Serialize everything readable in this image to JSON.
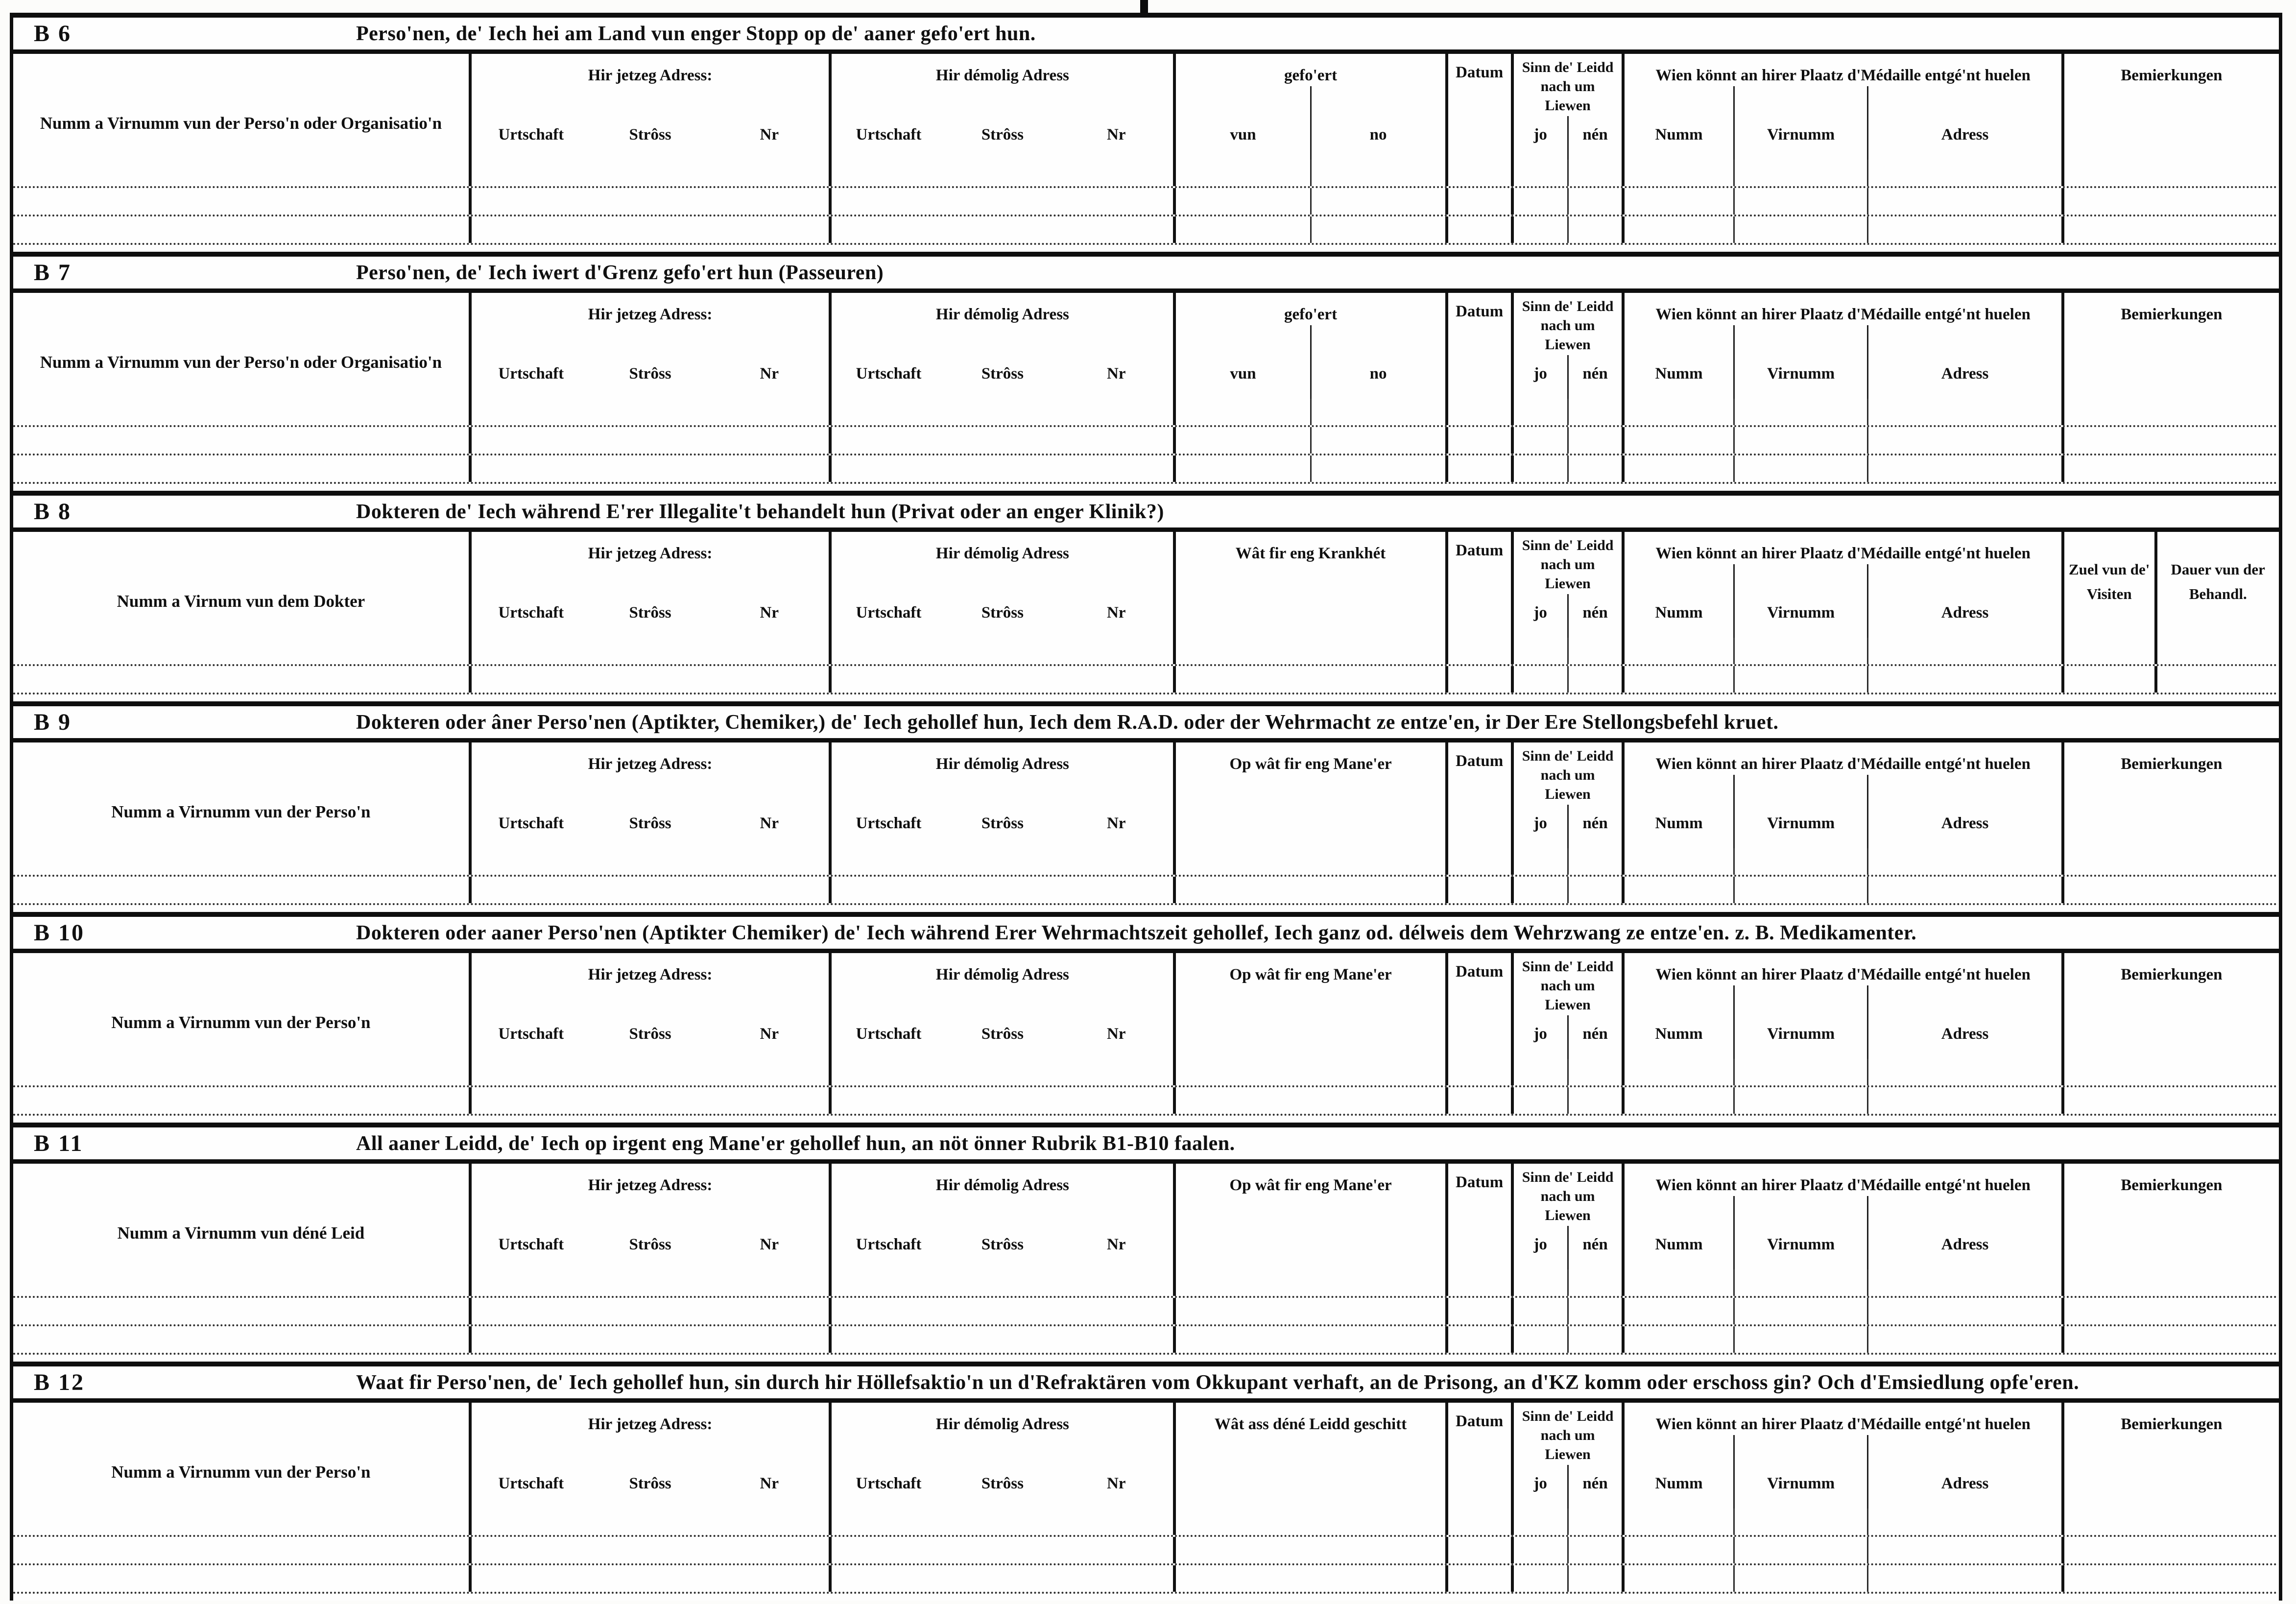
{
  "document": {
    "kind": "scanned historical questionnaire form",
    "ink_color": "#0e0e0e",
    "paper_color": "#fcfcfa"
  },
  "shared_headers": {
    "current_address": "Hir jetzeg Adress:",
    "former_address": "Hir démolig Adress",
    "address_subcols": [
      "Urtschaft",
      "Strôss",
      "Nr"
    ],
    "date": "Datum",
    "alive": "Sinn de' Leidd nach um Liewen",
    "alive_subcols": [
      "jo",
      "nén"
    ],
    "medal": "Wien könnt an hirer Plaatz d'Médaille entgé'nt huelen",
    "medal_subcols": [
      "Numm",
      "Virnumm",
      "Adress"
    ],
    "remarks": "Bemierkungen"
  },
  "sections": [
    {
      "id": "B 6",
      "title": "Perso'nen, de' Iech hei am Land vun enger Stopp op de' aaner gefo'ert hun.",
      "name_header": "Numm a Virnumm vun der Perso'n oder Organisatio'n",
      "middle_header": "gefo'ert",
      "middle_subcols": [
        "vun",
        "no"
      ],
      "data_rows": 3
    },
    {
      "id": "B 7",
      "title": "Perso'nen, de' Iech iwert d'Grenz gefo'ert hun (Passeuren)",
      "name_header": "Numm a Virnumm vun der Perso'n oder Organisatio'n",
      "middle_header": "gefo'ert",
      "middle_subcols": [
        "vun",
        "no"
      ],
      "data_rows": 3
    },
    {
      "id": "B 8",
      "title": "Dokteren de' Iech während E'rer Illegalite't behandelt hun (Privat oder an enger Klinik?)",
      "name_header": "Numm a Virnum vun dem Dokter",
      "middle_header": "Wât fir eng Krankhét",
      "middle_subcols": [],
      "extra_columns": [
        "Zuel vun de' Visiten",
        "Dauer vun der Behandl."
      ],
      "data_rows": 2
    },
    {
      "id": "B 9",
      "title": "Dokteren oder âner Perso'nen (Aptikter, Chemiker,) de' Iech gehollef hun, Iech dem R.A.D. oder der Wehrmacht ze entze'en, ir Der Ere Stellongsbefehl kruet.",
      "name_header": "Numm a Virnumm vun der Perso'n",
      "middle_header": "Op wât fir eng Mane'er",
      "middle_subcols": [],
      "data_rows": 2
    },
    {
      "id": "B 10",
      "title": "Dokteren oder aaner Perso'nen (Aptikter Chemiker) de' Iech während Erer Wehrmachtszeit gehollef, Iech ganz od. délweis dem Wehrzwang ze entze'en. z. B. Medikamenter.",
      "name_header": "Numm a Virnumm vun der Perso'n",
      "middle_header": "Op wât fir eng Mane'er",
      "middle_subcols": [],
      "data_rows": 2
    },
    {
      "id": "B 11",
      "title": "All aaner Leidd, de' Iech op irgent eng Mane'er gehollef hun, an nöt önner Rubrik B1-B10 faalen.",
      "name_header": "Numm a Virnumm vun déné Leid",
      "middle_header": "Op wât fir eng Mane'er",
      "middle_subcols": [],
      "data_rows": 3
    },
    {
      "id": "B 12",
      "title": "Waat fir Perso'nen, de' Iech gehollef hun, sin durch hir Höllefsaktio'n un d'Refraktären vom Okkupant verhaft, an de Prisong, an d'KZ komm oder erschoss gin? Och d'Emsiedlung opfe'eren.",
      "name_header": "Numm a Virnumm vun der Perso'n",
      "middle_header": "Wât ass déné Leidd geschitt",
      "middle_subcols": [],
      "data_rows": 3
    }
  ]
}
